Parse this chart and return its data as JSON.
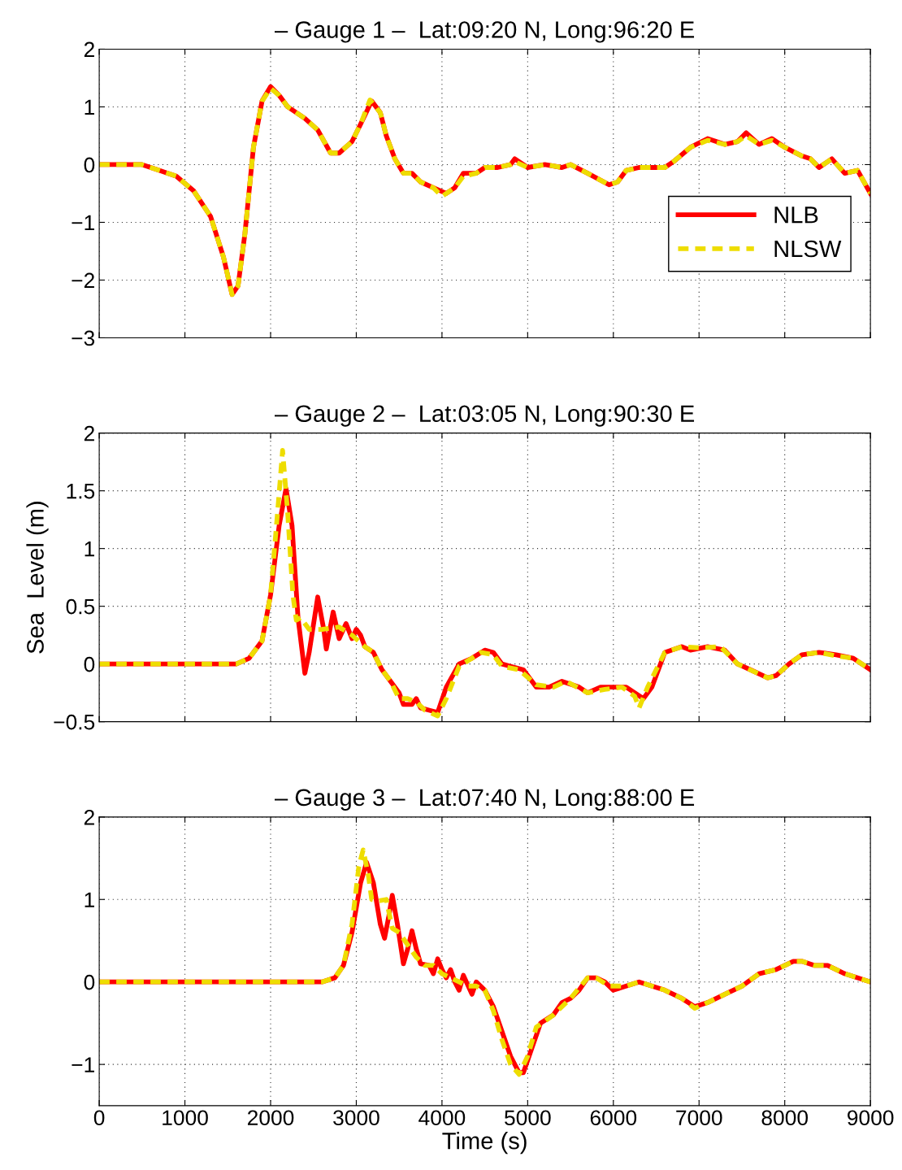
{
  "chart_data": [
    {
      "type": "line",
      "title": "– Gauge 1 –  Lat:09:20 N, Long:96:20 E",
      "xlim": [
        0,
        9000
      ],
      "xticks": [
        0,
        1000,
        2000,
        3000,
        4000,
        5000,
        6000,
        7000,
        8000,
        9000
      ],
      "ylim": [
        -3,
        2
      ],
      "yticks": [
        {
          "value": -3,
          "label": "−3"
        },
        {
          "value": -2,
          "label": "−2"
        },
        {
          "value": -1,
          "label": "−1"
        },
        0,
        1,
        2
      ],
      "tick_labels": "y",
      "grid": true,
      "legend": "center right",
      "series": [
        {
          "name": "NLB",
          "color": "#ff0000",
          "line_style": "solid",
          "x": [
            0,
            500,
            700,
            900,
            1100,
            1300,
            1450,
            1550,
            1620,
            1700,
            1800,
            1900,
            2000,
            2100,
            2200,
            2400,
            2550,
            2700,
            2800,
            2950,
            3050,
            3180,
            3280,
            3350,
            3450,
            3550,
            3650,
            3750,
            3900,
            4050,
            4150,
            4250,
            4400,
            4500,
            4650,
            4800,
            4850,
            5000,
            5200,
            5400,
            5500,
            5700,
            5950,
            6050,
            6150,
            6300,
            6500,
            6600,
            6700,
            6900,
            7100,
            7300,
            7450,
            7550,
            7700,
            7850,
            8000,
            8200,
            8300,
            8400,
            8550,
            8700,
            8850,
            9000
          ],
          "values": [
            0,
            0,
            -0.1,
            -0.2,
            -0.45,
            -0.9,
            -1.6,
            -2.25,
            -2.1,
            -1.2,
            0.3,
            1.1,
            1.35,
            1.2,
            1.0,
            0.8,
            0.6,
            0.2,
            0.2,
            0.4,
            0.7,
            1.1,
            0.9,
            0.5,
            0.1,
            -0.15,
            -0.15,
            -0.3,
            -0.4,
            -0.5,
            -0.4,
            -0.15,
            -0.15,
            -0.05,
            -0.05,
            0.0,
            0.1,
            -0.05,
            0.0,
            -0.05,
            0.0,
            -0.15,
            -0.35,
            -0.3,
            -0.1,
            -0.05,
            -0.05,
            -0.05,
            0.05,
            0.3,
            0.45,
            0.35,
            0.4,
            0.55,
            0.35,
            0.45,
            0.3,
            0.15,
            0.1,
            -0.05,
            0.1,
            -0.15,
            -0.1,
            -0.5
          ]
        },
        {
          "name": "NLSW",
          "color": "#eedd00",
          "line_style": "dashed",
          "x": [
            0,
            500,
            700,
            900,
            1100,
            1300,
            1450,
            1550,
            1620,
            1700,
            1800,
            1900,
            2000,
            2100,
            2200,
            2400,
            2550,
            2700,
            2800,
            2950,
            3050,
            3160,
            3280,
            3350,
            3450,
            3550,
            3650,
            3750,
            3900,
            4000,
            4150,
            4250,
            4400,
            4500,
            4650,
            4800,
            4850,
            5000,
            5200,
            5400,
            5500,
            5700,
            5950,
            6050,
            6150,
            6300,
            6500,
            6600,
            6700,
            6900,
            7100,
            7300,
            7450,
            7550,
            7700,
            7850,
            8000,
            8200,
            8300,
            8400,
            8550,
            8700,
            8850,
            9000
          ],
          "values": [
            0,
            0,
            -0.1,
            -0.2,
            -0.45,
            -0.9,
            -1.6,
            -2.25,
            -2.1,
            -1.2,
            0.3,
            1.1,
            1.32,
            1.2,
            1.0,
            0.8,
            0.6,
            0.2,
            0.2,
            0.4,
            0.7,
            1.12,
            0.9,
            0.5,
            0.1,
            -0.15,
            -0.15,
            -0.3,
            -0.4,
            -0.55,
            -0.4,
            -0.2,
            -0.15,
            -0.05,
            -0.05,
            0.0,
            0.05,
            -0.05,
            0.0,
            -0.05,
            0.0,
            -0.15,
            -0.35,
            -0.3,
            -0.1,
            -0.05,
            -0.05,
            -0.05,
            0.05,
            0.3,
            0.42,
            0.35,
            0.4,
            0.5,
            0.35,
            0.42,
            0.3,
            0.15,
            0.1,
            -0.05,
            0.1,
            -0.15,
            -0.1,
            -0.5
          ]
        }
      ]
    },
    {
      "type": "line",
      "title": "– Gauge 2 –  Lat:03:05 N, Long:90:30 E",
      "ylabel": "Sea  Level (m)",
      "xlim": [
        0,
        9000
      ],
      "xticks": [
        0,
        1000,
        2000,
        3000,
        4000,
        5000,
        6000,
        7000,
        8000,
        9000
      ],
      "ylim": [
        -0.5,
        2
      ],
      "yticks": [
        {
          "value": -0.5,
          "label": "−0.5"
        },
        0,
        0.5,
        1,
        1.5,
        2
      ],
      "tick_labels": "y",
      "grid": true,
      "series": [
        {
          "color": "#ff0000",
          "line_style": "solid",
          "x": [
            0,
            1600,
            1750,
            1900,
            2000,
            2100,
            2180,
            2250,
            2320,
            2400,
            2450,
            2550,
            2620,
            2650,
            2730,
            2800,
            2880,
            2950,
            3000,
            3050,
            3100,
            3200,
            3300,
            3400,
            3500,
            3550,
            3650,
            3700,
            3750,
            3850,
            3950,
            4050,
            4200,
            4350,
            4500,
            4600,
            4700,
            4800,
            4950,
            5100,
            5250,
            5400,
            5600,
            5700,
            5850,
            6000,
            6150,
            6250,
            6350,
            6450,
            6600,
            6800,
            6900,
            7100,
            7300,
            7450,
            7600,
            7800,
            7900,
            8050,
            8200,
            8400,
            8600,
            8800,
            9000
          ],
          "values": [
            0,
            0,
            0.05,
            0.2,
            0.6,
            1.2,
            1.52,
            1.2,
            0.4,
            -0.08,
            0.1,
            0.58,
            0.3,
            0.13,
            0.45,
            0.22,
            0.35,
            0.22,
            0.3,
            0.25,
            0.15,
            0.1,
            -0.05,
            -0.15,
            -0.25,
            -0.35,
            -0.35,
            -0.3,
            -0.38,
            -0.4,
            -0.42,
            -0.2,
            0.0,
            0.05,
            0.12,
            0.1,
            0.0,
            -0.02,
            -0.05,
            -0.2,
            -0.2,
            -0.15,
            -0.2,
            -0.25,
            -0.2,
            -0.2,
            -0.2,
            -0.25,
            -0.3,
            -0.2,
            0.1,
            0.15,
            0.12,
            0.15,
            0.12,
            0.0,
            -0.05,
            -0.12,
            -0.1,
            0.0,
            0.08,
            0.1,
            0.08,
            0.05,
            -0.05
          ]
        },
        {
          "color": "#eedd00",
          "line_style": "dashed",
          "x": [
            0,
            1600,
            1750,
            1900,
            2000,
            2080,
            2140,
            2200,
            2260,
            2300,
            2350,
            2450,
            2600,
            2800,
            2950,
            3100,
            3200,
            3300,
            3400,
            3500,
            3600,
            3700,
            3800,
            3950,
            4050,
            4200,
            4350,
            4450,
            4600,
            4700,
            4900,
            5100,
            5300,
            5450,
            5700,
            5900,
            6100,
            6250,
            6300,
            6400,
            6600,
            6800,
            7000,
            7250,
            7450,
            7800,
            7900,
            8050,
            8200,
            8400,
            8600,
            8800,
            9000
          ],
          "values": [
            0,
            0,
            0.05,
            0.2,
            0.6,
            1.3,
            1.85,
            1.3,
            0.6,
            0.38,
            0.4,
            0.3,
            0.3,
            0.32,
            0.25,
            0.15,
            0.1,
            -0.05,
            -0.15,
            -0.3,
            -0.3,
            -0.33,
            -0.4,
            -0.45,
            -0.3,
            -0.02,
            0.05,
            0.1,
            0.08,
            -0.02,
            -0.05,
            -0.18,
            -0.2,
            -0.15,
            -0.25,
            -0.22,
            -0.2,
            -0.28,
            -0.38,
            -0.2,
            0.1,
            0.15,
            0.14,
            0.15,
            0.0,
            -0.12,
            -0.1,
            0.0,
            0.08,
            0.1,
            0.07,
            0.05,
            -0.05
          ]
        }
      ]
    },
    {
      "type": "line",
      "title": "– Gauge 3 –  Lat:07:40 N, Long:88:00 E",
      "xlabel": "Time (s)",
      "xlim": [
        0,
        9000
      ],
      "xticks": [
        0,
        1000,
        2000,
        3000,
        4000,
        5000,
        6000,
        7000,
        8000,
        9000
      ],
      "ylim": [
        -1.5,
        2
      ],
      "yticks": [
        {
          "value": -1,
          "label": "−1"
        },
        0,
        1,
        2
      ],
      "grid": true,
      "series": [
        {
          "color": "#ff0000",
          "line_style": "solid",
          "x": [
            0,
            2600,
            2750,
            2850,
            2950,
            3050,
            3120,
            3200,
            3280,
            3330,
            3380,
            3420,
            3480,
            3550,
            3600,
            3650,
            3700,
            3750,
            3850,
            3900,
            3950,
            4000,
            4050,
            4100,
            4150,
            4200,
            4250,
            4350,
            4400,
            4500,
            4600,
            4700,
            4800,
            4900,
            4950,
            5050,
            5150,
            5300,
            5400,
            5500,
            5600,
            5700,
            5800,
            5900,
            6000,
            6150,
            6300,
            6450,
            6600,
            6800,
            6950,
            7100,
            7300,
            7500,
            7700,
            7900,
            8100,
            8200,
            8350,
            8500,
            8700,
            9000
          ],
          "values": [
            0,
            0,
            0.05,
            0.2,
            0.6,
            1.2,
            1.45,
            1.2,
            0.7,
            0.53,
            0.8,
            1.05,
            0.7,
            0.22,
            0.4,
            0.62,
            0.4,
            0.22,
            0.2,
            0.1,
            0.28,
            0.15,
            0.05,
            0.15,
            0.0,
            -0.1,
            0.08,
            -0.15,
            0.0,
            -0.1,
            -0.3,
            -0.6,
            -0.9,
            -1.1,
            -1.1,
            -0.8,
            -0.5,
            -0.4,
            -0.25,
            -0.2,
            -0.1,
            0.05,
            0.05,
            0.0,
            -0.1,
            -0.05,
            0.0,
            -0.05,
            -0.1,
            -0.2,
            -0.3,
            -0.25,
            -0.15,
            -0.05,
            0.1,
            0.15,
            0.25,
            0.25,
            0.2,
            0.2,
            0.1,
            0.0
          ]
        },
        {
          "color": "#eedd00",
          "line_style": "dashed",
          "x": [
            0,
            2600,
            2750,
            2850,
            2950,
            3030,
            3080,
            3140,
            3180,
            3250,
            3350,
            3420,
            3500,
            3600,
            3700,
            3800,
            3900,
            4000,
            4100,
            4200,
            4300,
            4400,
            4500,
            4600,
            4700,
            4800,
            4900,
            5000,
            5100,
            5300,
            5500,
            5700,
            5800,
            5950,
            6150,
            6300,
            6600,
            6800,
            6950,
            7100,
            7300,
            7500,
            7700,
            7900,
            8100,
            8200,
            8350,
            8500,
            8700,
            9000
          ],
          "values": [
            0,
            0,
            0.05,
            0.2,
            0.7,
            1.4,
            1.6,
            1.3,
            1.0,
            0.98,
            1.0,
            0.65,
            0.6,
            0.45,
            0.3,
            0.2,
            0.2,
            0.1,
            0.05,
            0.0,
            -0.05,
            -0.05,
            -0.1,
            -0.35,
            -0.7,
            -1.0,
            -1.12,
            -0.9,
            -0.55,
            -0.4,
            -0.2,
            0.05,
            0.05,
            -0.05,
            -0.05,
            0.0,
            -0.1,
            -0.2,
            -0.32,
            -0.25,
            -0.15,
            -0.05,
            0.1,
            0.15,
            0.25,
            0.25,
            0.2,
            0.2,
            0.1,
            0.0
          ]
        }
      ]
    }
  ]
}
